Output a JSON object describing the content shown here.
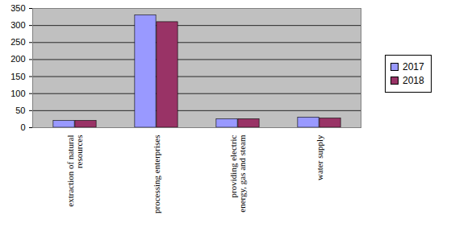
{
  "chart_data": {
    "type": "bar",
    "categories": [
      "extraction of natural resources",
      "processing enterprises",
      "providing electric energy, gas and steam",
      "water supply"
    ],
    "series": [
      {
        "name": "2017",
        "color": "#9999ff",
        "values": [
          20,
          330,
          25,
          30
        ]
      },
      {
        "name": "2018",
        "color": "#993366",
        "values": [
          20,
          310,
          25,
          27
        ]
      }
    ],
    "ylim": [
      0,
      350
    ],
    "yticks": [
      0,
      50,
      100,
      150,
      200,
      250,
      300,
      350
    ],
    "grid": true,
    "legend": "right"
  }
}
